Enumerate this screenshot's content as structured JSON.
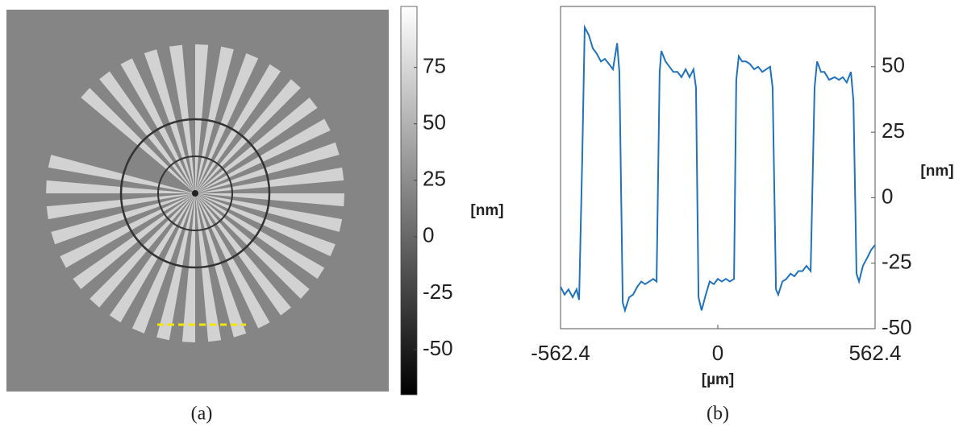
{
  "chart_data": [
    {
      "type": "image",
      "caption": "(a)",
      "colorbar_label": "[nm]",
      "colormap": [
        "#000000",
        "#ffffff"
      ],
      "zlim": [
        -70,
        102
      ],
      "zticks": [
        75,
        50,
        25,
        0,
        -25,
        -50
      ]
    },
    {
      "type": "line",
      "caption": "(b)",
      "xlabel": "[µm]",
      "ylabel": "[nm]",
      "xlim": [
        -562.4,
        562.4
      ],
      "xticks": [
        -562.4,
        0,
        562.4
      ],
      "ylim": [
        -50,
        73
      ],
      "yticks": [
        50,
        25,
        0,
        -25,
        -50
      ],
      "series": [
        {
          "color": "#1f72bd",
          "x": [
            -562.4,
            -548,
            -534,
            -519,
            -505,
            -496,
            -485,
            -476,
            -461,
            -447,
            -433,
            -418,
            -404,
            -389,
            -375,
            -360,
            -352,
            -340,
            -332,
            -317,
            -303,
            -288,
            -274,
            -260,
            -245,
            -231,
            -219,
            -208,
            -202,
            -187,
            -173,
            -159,
            -144,
            -130,
            -115,
            -101,
            -87,
            -78,
            -69,
            -58,
            -43,
            -29,
            -14,
            0,
            14,
            29,
            43,
            58,
            66,
            75,
            87,
            101,
            115,
            130,
            144,
            159,
            173,
            187,
            196,
            208,
            216,
            231,
            245,
            260,
            274,
            288,
            303,
            317,
            332,
            346,
            355,
            369,
            381,
            398,
            418,
            433,
            447,
            461,
            476,
            485,
            496,
            505,
            519,
            534,
            548,
            562.4
          ],
          "values": [
            -34,
            -37,
            -35,
            -38,
            -35,
            -39,
            14,
            65,
            62,
            57,
            55,
            52,
            53,
            51,
            49,
            59,
            48,
            -40,
            -43,
            -38,
            -37,
            -34,
            -32,
            -33,
            -32,
            -31,
            -32,
            48,
            56,
            52,
            50,
            48,
            48,
            46,
            49,
            46,
            49,
            42,
            -38,
            -43,
            -37,
            -32,
            -33,
            -31,
            -32,
            -31,
            -32,
            -31,
            45,
            54,
            52,
            52,
            51,
            49,
            50,
            48,
            49,
            50,
            42,
            -35,
            -37,
            -32,
            -31,
            -29,
            -30,
            -28,
            -28,
            -26,
            -28,
            42,
            52,
            48,
            48,
            45,
            46,
            45,
            46,
            44,
            48,
            37,
            -29,
            -32,
            -26,
            -23,
            -20,
            -18
          ]
        }
      ]
    }
  ]
}
